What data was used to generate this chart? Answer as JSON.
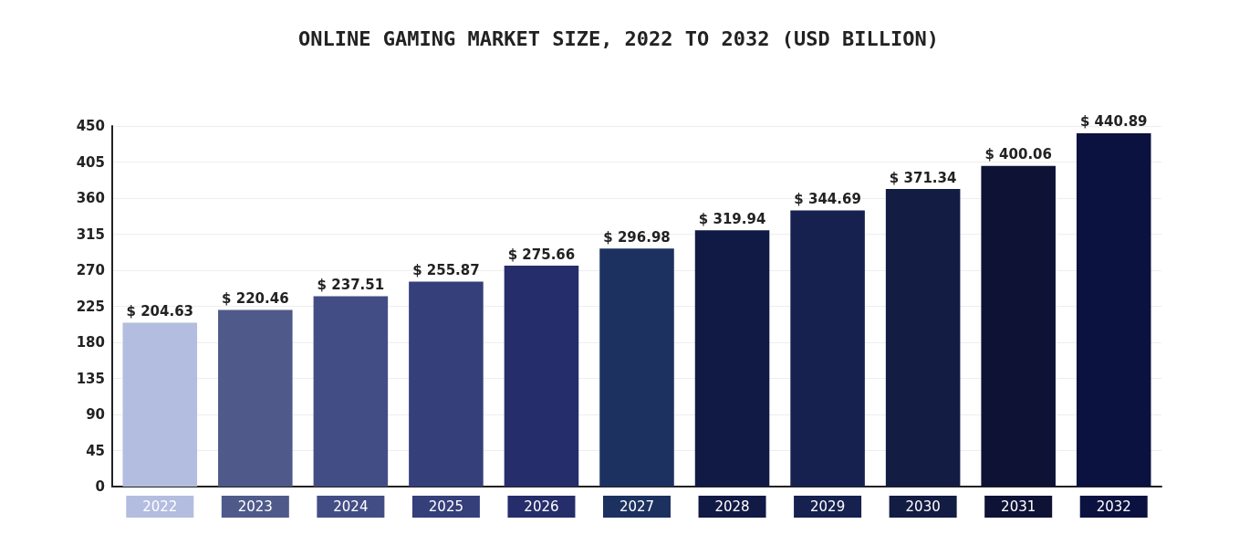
{
  "chart_data": {
    "type": "bar",
    "title": "ONLINE GAMING MARKET SIZE, 2022 TO 2032 (USD BILLION)",
    "categories": [
      "2022",
      "2023",
      "2024",
      "2025",
      "2026",
      "2027",
      "2028",
      "2029",
      "2030",
      "2031",
      "2032"
    ],
    "values": [
      204.63,
      220.46,
      237.51,
      255.87,
      275.66,
      296.98,
      319.94,
      344.69,
      371.34,
      400.06,
      440.89
    ],
    "value_labels": [
      "$ 204.63",
      "$ 220.46",
      "$ 237.51",
      "$ 255.87",
      "$ 275.66",
      "$ 296.98",
      "$ 319.94",
      "$ 344.69",
      "$ 371.34",
      "$ 400.06",
      "$ 440.89"
    ],
    "colors": [
      "#b3bde0",
      "#4f5a8a",
      "#434d85",
      "#353f7a",
      "#252d6b",
      "#1d3160",
      "#111a45",
      "#16214f",
      "#131c42",
      "#0e1235",
      "#0b1240"
    ],
    "ylim": [
      0,
      450
    ],
    "yticks": [
      0,
      45,
      90,
      135,
      180,
      225,
      270,
      315,
      360,
      405,
      450
    ],
    "grid": "y"
  }
}
